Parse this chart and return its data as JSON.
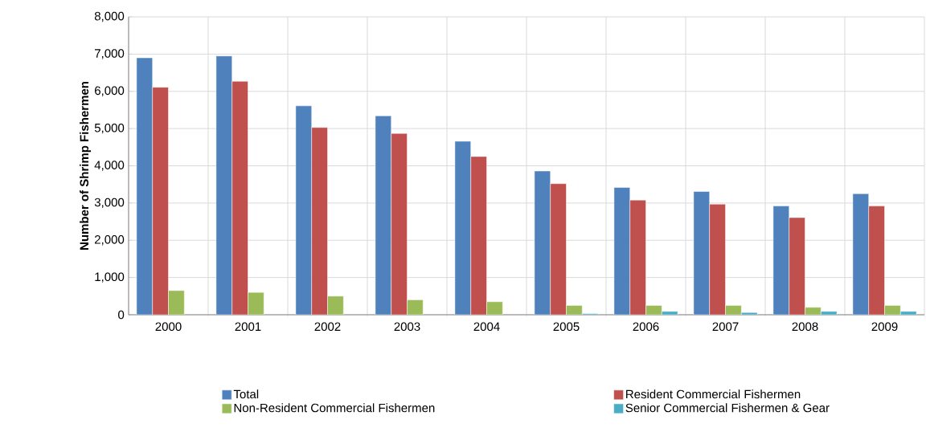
{
  "chart_data": {
    "type": "bar",
    "ylabel": "Number of Shrimp Fishermen",
    "categories": [
      "2000",
      "2001",
      "2002",
      "2003",
      "2004",
      "2005",
      "2006",
      "2007",
      "2008",
      "2009"
    ],
    "series": [
      {
        "name": "Total",
        "color": "#4f81bd",
        "values": [
          6900,
          6950,
          5610,
          5340,
          4660,
          3860,
          3420,
          3310,
          2920,
          3250
        ]
      },
      {
        "name": "Resident Commercial Fishermen",
        "color": "#c0504d",
        "values": [
          6110,
          6270,
          5030,
          4870,
          4250,
          3520,
          3080,
          2970,
          2610,
          2920
        ]
      },
      {
        "name": "Non-Resident Commercial Fishermen",
        "color": "#9bbb59",
        "values": [
          650,
          600,
          500,
          400,
          350,
          250,
          250,
          250,
          200,
          250
        ]
      },
      {
        "name": "Senior Commercial Fishermen & Gear",
        "color": "#4bacc6",
        "values": [
          null,
          null,
          null,
          null,
          null,
          30,
          90,
          60,
          90,
          90
        ]
      }
    ],
    "ylim": [
      0,
      8000
    ],
    "yticks": [
      {
        "value": 0,
        "label": "0"
      },
      {
        "value": 1000,
        "label": "1,000"
      },
      {
        "value": 2000,
        "label": "2,000"
      },
      {
        "value": 3000,
        "label": "3,000"
      },
      {
        "value": 4000,
        "label": "4,000"
      },
      {
        "value": 5000,
        "label": "5,000"
      },
      {
        "value": 6000,
        "label": "6,000"
      },
      {
        "value": 7000,
        "label": "7,000"
      },
      {
        "value": 8000,
        "label": "8,000"
      }
    ],
    "grid": true,
    "legend": "bottom"
  }
}
